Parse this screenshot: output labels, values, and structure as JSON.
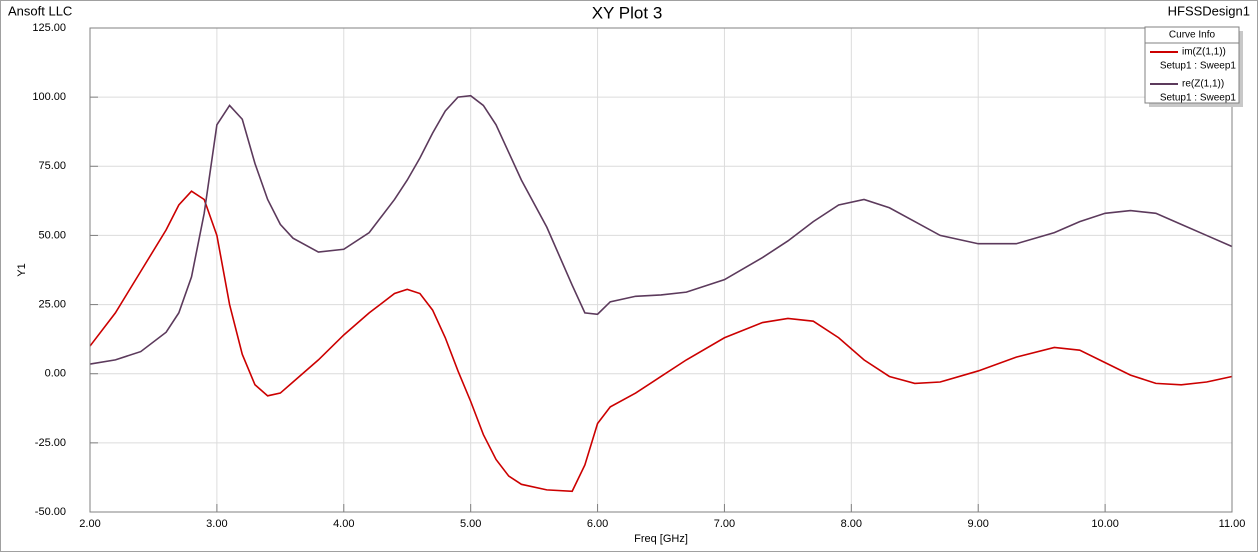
{
  "chart_data": {
    "type": "line",
    "title": "XY Plot 3",
    "company": "Ansoft LLC",
    "design": "HFSSDesign1",
    "xlabel": "Freq [GHz]",
    "ylabel": "Y1",
    "legend_title": "Curve Info",
    "legend": "upper right",
    "grid": true,
    "x": [
      2.0,
      2.2,
      2.4,
      2.6,
      2.7,
      2.8,
      2.9,
      3.0,
      3.1,
      3.2,
      3.3,
      3.4,
      3.5,
      3.6,
      3.8,
      4.0,
      4.2,
      4.4,
      4.5,
      4.6,
      4.7,
      4.8,
      4.9,
      5.0,
      5.1,
      5.2,
      5.3,
      5.4,
      5.6,
      5.8,
      5.9,
      6.0,
      6.1,
      6.3,
      6.5,
      6.7,
      7.0,
      7.3,
      7.5,
      7.7,
      7.9,
      8.1,
      8.3,
      8.5,
      8.7,
      9.0,
      9.3,
      9.6,
      9.8,
      10.0,
      10.2,
      10.4,
      10.6,
      10.8,
      11.0
    ],
    "series": [
      {
        "name": "im(Z(1,1))",
        "sweep": "Setup1 : Sweep1",
        "color": "#cc0000",
        "values": [
          10,
          22,
          37,
          52,
          61,
          66,
          63,
          50,
          25,
          7,
          -4,
          -8,
          -7,
          -3,
          5,
          14,
          22,
          29,
          30.5,
          29,
          23,
          13,
          1,
          -10,
          -22,
          -31,
          -37,
          -40,
          -42,
          -42.5,
          -33,
          -18,
          -12,
          -7,
          -1,
          5,
          13,
          18.5,
          20,
          19,
          13,
          5,
          -1,
          -3.5,
          -3,
          1,
          6,
          9.5,
          8.5,
          4,
          -0.5,
          -3.5,
          -4,
          -3,
          -1
        ]
      },
      {
        "name": "re(Z(1,1))",
        "sweep": "Setup1 : Sweep1",
        "color": "#5c3a5c",
        "values": [
          3.5,
          5,
          8,
          15,
          22,
          35,
          58,
          90,
          97,
          92,
          76,
          63,
          54,
          49,
          44,
          45,
          51,
          63,
          70,
          78,
          87,
          95,
          100,
          100.5,
          97,
          90,
          80,
          70,
          53,
          32,
          22,
          21.5,
          26,
          28,
          28.5,
          29.5,
          34,
          42,
          48,
          55,
          61,
          63,
          60,
          55,
          50,
          47,
          47,
          51,
          55,
          58,
          59,
          58,
          54,
          50,
          46
        ]
      }
    ],
    "xlim": [
      2,
      11
    ],
    "xticks": [
      {
        "value": 2,
        "label": "2.00"
      },
      {
        "value": 3,
        "label": "3.00"
      },
      {
        "value": 4,
        "label": "4.00"
      },
      {
        "value": 5,
        "label": "5.00"
      },
      {
        "value": 6,
        "label": "6.00"
      },
      {
        "value": 7,
        "label": "7.00"
      },
      {
        "value": 8,
        "label": "8.00"
      },
      {
        "value": 9,
        "label": "9.00"
      },
      {
        "value": 10,
        "label": "10.00"
      },
      {
        "value": 11,
        "label": "11.00"
      }
    ],
    "ylim": [
      -50,
      125
    ],
    "yticks": [
      {
        "value": -50,
        "label": "-50.00"
      },
      {
        "value": -25,
        "label": "-25.00"
      },
      {
        "value": 0,
        "label": "0.00"
      },
      {
        "value": 25,
        "label": "25.00"
      },
      {
        "value": 50,
        "label": "50.00"
      },
      {
        "value": 75,
        "label": "75.00"
      },
      {
        "value": 100,
        "label": "100.00"
      },
      {
        "value": 125,
        "label": "125.00"
      }
    ]
  }
}
